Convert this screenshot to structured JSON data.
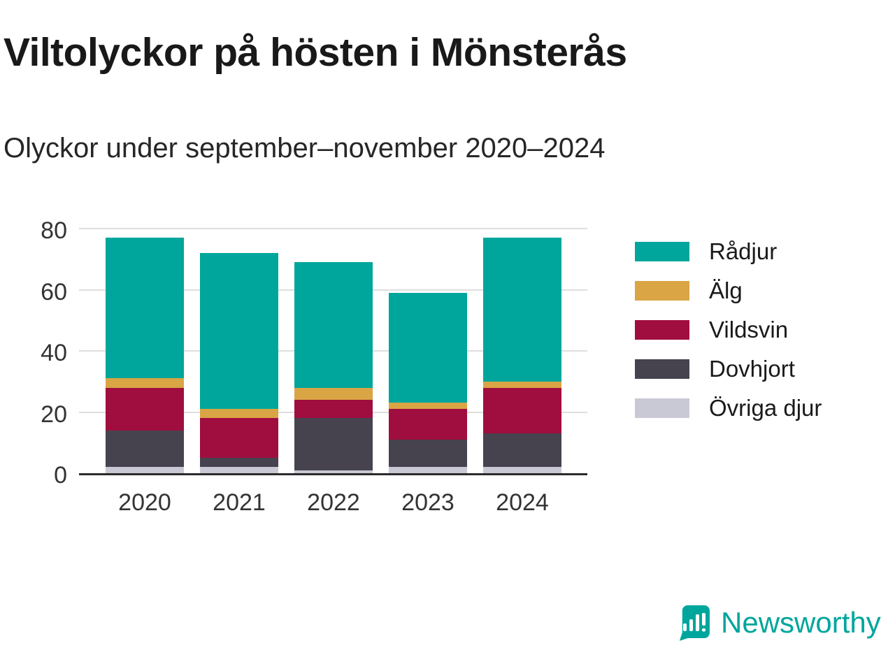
{
  "page": {
    "title": "Viltolyckor på hösten i Mönsterås",
    "subtitle": "Olyckor under september–november 2020–2024"
  },
  "chart_data": {
    "type": "bar",
    "stacked": true,
    "title": "Viltolyckor på hösten i Mönsterås",
    "subtitle": "Olyckor under september–november 2020–2024",
    "categories": [
      "2020",
      "2021",
      "2022",
      "2023",
      "2024"
    ],
    "series": [
      {
        "name": "Övriga djur",
        "color": "#c9c9d6",
        "values": [
          2,
          2,
          1,
          2,
          2
        ]
      },
      {
        "name": "Dovhjort",
        "color": "#46434f",
        "values": [
          12,
          3,
          17,
          9,
          11
        ]
      },
      {
        "name": "Vildsvin",
        "color": "#a00d3f",
        "values": [
          14,
          13,
          6,
          10,
          15
        ]
      },
      {
        "name": "Älg",
        "color": "#d9a545",
        "values": [
          3,
          3,
          4,
          2,
          2
        ]
      },
      {
        "name": "Rådjur",
        "color": "#00a69c",
        "values": [
          46,
          51,
          41,
          36,
          47
        ]
      }
    ],
    "totals": [
      77,
      72,
      69,
      59,
      77
    ],
    "xlabel": "",
    "ylabel": "",
    "ylim": [
      0,
      80
    ],
    "yticks": [
      0,
      20,
      40,
      60,
      80
    ],
    "grid": true,
    "legend_position": "right"
  },
  "legend": {
    "items": [
      {
        "label": "Rådjur",
        "color": "#00a69c"
      },
      {
        "label": "Älg",
        "color": "#d9a545"
      },
      {
        "label": "Vildsvin",
        "color": "#a00d3f"
      },
      {
        "label": "Dovhjort",
        "color": "#46434f"
      },
      {
        "label": "Övriga djur",
        "color": "#c9c9d6"
      }
    ]
  },
  "branding": {
    "logo_text": "Newsworthy",
    "logo_color": "#00a69c"
  }
}
